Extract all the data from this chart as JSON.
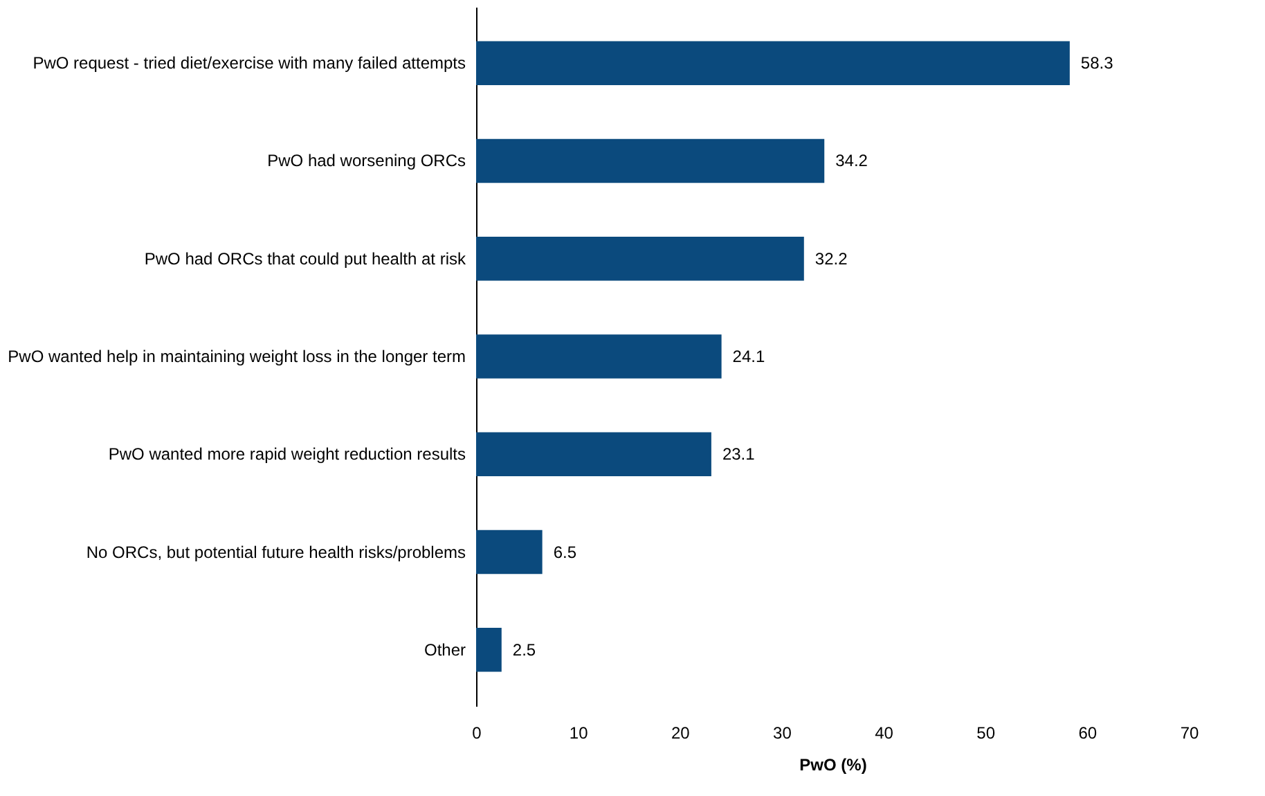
{
  "chart_data": {
    "type": "bar",
    "orientation": "horizontal",
    "xlabel": "PwO (%)",
    "categories": [
      "PwO request - tried diet/exercise with many failed attempts",
      "PwO had worsening ORCs",
      "PwO had ORCs that could put health at risk",
      "PwO wanted help in maintaining weight loss in the longer term",
      "PwO wanted more rapid weight reduction results",
      "No ORCs, but potential future health risks/problems",
      "Other"
    ],
    "values": [
      58.3,
      34.2,
      32.2,
      24.1,
      23.1,
      6.5,
      2.5
    ],
    "color": "#0b4a7d",
    "xlim": [
      0,
      70
    ],
    "xticks": [
      0,
      10,
      20,
      30,
      40,
      50,
      60,
      70
    ],
    "data_labels": true,
    "grid": false
  }
}
